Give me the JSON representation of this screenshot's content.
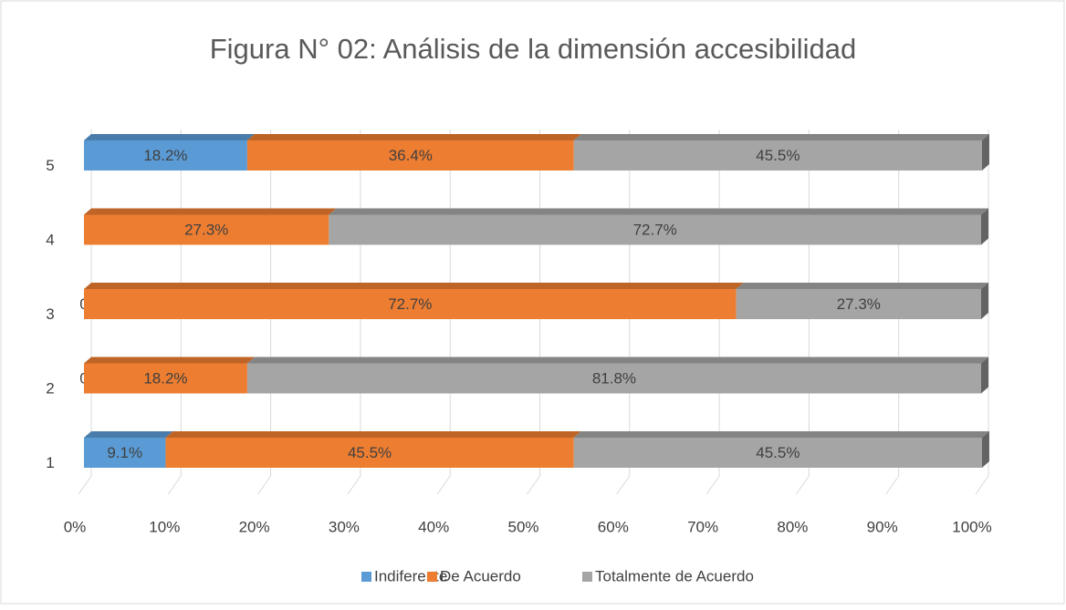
{
  "chart_data": {
    "type": "bar",
    "orientation": "horizontal",
    "stacked": true,
    "title": "Figura N° 02: Análisis de la dimensión accesibilidad",
    "categories": [
      "1",
      "2",
      "3",
      "4",
      "5"
    ],
    "series": [
      {
        "name": "Indiferente",
        "color": "#5b9bd5",
        "values": [
          9.1,
          0,
          0,
          null,
          18.2
        ],
        "value_labels": [
          "9.1%",
          "0",
          "0",
          null,
          "18.2%"
        ]
      },
      {
        "name": "De Acuerdo",
        "color": "#ed7d31",
        "values": [
          45.5,
          18.2,
          72.7,
          27.3,
          36.4
        ],
        "value_labels": [
          "45.5%",
          "18.2%",
          "72.7%",
          "27.3%",
          "36.4%"
        ]
      },
      {
        "name": "Totalmente de Acuerdo",
        "color": "#a5a5a5",
        "values": [
          45.5,
          81.8,
          27.3,
          72.7,
          45.5
        ],
        "value_labels": [
          "45.5%",
          "81.8%",
          "27.3%",
          "72.7%",
          "45.5%"
        ]
      }
    ],
    "xlim": [
      0,
      100
    ],
    "xticks": [
      {
        "value": 0,
        "label": "0%"
      },
      {
        "value": 10,
        "label": "10%"
      },
      {
        "value": 20,
        "label": "20%"
      },
      {
        "value": 30,
        "label": "30%"
      },
      {
        "value": 40,
        "label": "40%"
      },
      {
        "value": 50,
        "label": "50%"
      },
      {
        "value": 60,
        "label": "60%"
      },
      {
        "value": 70,
        "label": "70%"
      },
      {
        "value": 80,
        "label": "80%"
      },
      {
        "value": 90,
        "label": "90%"
      },
      {
        "value": 100,
        "label": "100%"
      }
    ],
    "grid": true,
    "legend": "bottom"
  }
}
